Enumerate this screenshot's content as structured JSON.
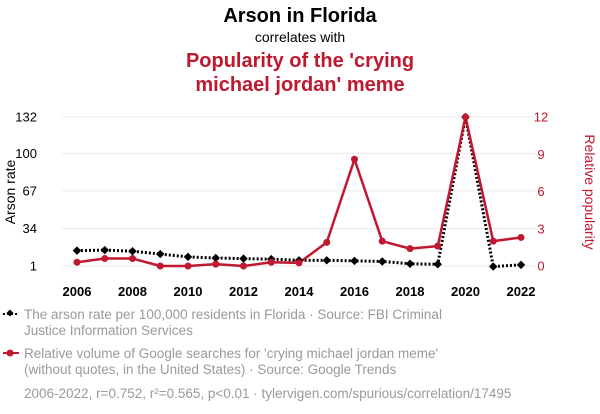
{
  "chart_data": {
    "type": "line",
    "title": "Arson in Florida",
    "subtitle": "correlates with",
    "title2_lines": [
      "Popularity of the 'crying",
      "michael jordan' meme"
    ],
    "x": [
      2006,
      2007,
      2008,
      2009,
      2010,
      2011,
      2012,
      2013,
      2014,
      2015,
      2016,
      2017,
      2018,
      2019,
      2020,
      2021,
      2022
    ],
    "x_ticks": [
      "2006",
      "2008",
      "2010",
      "2012",
      "2014",
      "2016",
      "2018",
      "2020",
      "2022"
    ],
    "y_left": {
      "label": "Arson rate",
      "ticks": [
        "1",
        "34",
        "67",
        "100",
        "132"
      ],
      "tick_values": [
        1,
        34,
        67,
        100,
        132
      ],
      "range": [
        1,
        132
      ]
    },
    "y_right": {
      "label": "Relative popularity",
      "ticks": [
        "0",
        "3",
        "6",
        "9",
        "12"
      ],
      "tick_values": [
        0,
        3,
        6,
        9,
        12
      ],
      "range": [
        0,
        12
      ]
    },
    "series": [
      {
        "axis": "left",
        "color": "#000000",
        "style": "dotted",
        "marker": "diamond",
        "values": [
          14.5,
          15,
          14,
          11.5,
          9,
          8,
          7.5,
          7,
          6,
          6,
          5.5,
          5,
          3,
          2.5,
          132,
          0.5,
          2
        ]
      },
      {
        "axis": "right",
        "color": "#c0182f",
        "style": "solid",
        "marker": "circle",
        "values": [
          0.3,
          0.6,
          0.6,
          0.0,
          0.0,
          0.15,
          0.0,
          0.3,
          0.25,
          1.9,
          8.6,
          2.0,
          1.4,
          1.6,
          12.0,
          2.0,
          2.3
        ]
      }
    ],
    "legend": [
      {
        "lines": [
          "The arson rate per 100,000 residents in Florida · Source: FBI Criminal",
          "Justice Information Services"
        ]
      },
      {
        "lines": [
          "Relative volume of Google searches for 'crying michael jordan meme'",
          "(without quotes, in the United States) · Source: Google Trends"
        ]
      }
    ],
    "footer": "2006-2022, r=0.752, r²=0.565, p<0.01 · tylervigen.com/spurious/correlation/17495"
  }
}
